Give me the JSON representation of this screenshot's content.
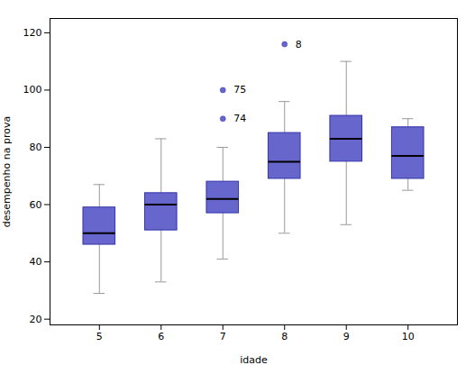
{
  "chart_data": {
    "type": "box",
    "title": "",
    "xlabel": "idade",
    "ylabel": "desempenho na prova",
    "x": [
      5,
      6,
      7,
      8,
      9,
      10
    ],
    "q1": [
      46,
      51,
      57,
      69,
      75,
      69
    ],
    "median": [
      50,
      60,
      62,
      75,
      83,
      77
    ],
    "q3": [
      59,
      64,
      68,
      85,
      91,
      87
    ],
    "whisker_low": [
      29,
      33,
      41,
      50,
      53,
      65
    ],
    "whisker_high": [
      67,
      83,
      80,
      96,
      110,
      90
    ],
    "fliers": [
      [],
      [],
      [
        90,
        100
      ],
      [
        116
      ],
      [],
      []
    ],
    "annotations": [
      {
        "x": 7,
        "y": 100,
        "text": "75"
      },
      {
        "x": 7,
        "y": 90,
        "text": "74"
      },
      {
        "x": 8,
        "y": 116,
        "text": "8"
      }
    ],
    "color": "#6666cc",
    "xlim": [
      4.2,
      10.8
    ],
    "ylim": [
      18,
      125
    ],
    "xticks": [
      5,
      6,
      7,
      8,
      9,
      10
    ],
    "yticks": [
      20,
      40,
      60,
      80,
      100,
      120
    ],
    "grid": false
  }
}
